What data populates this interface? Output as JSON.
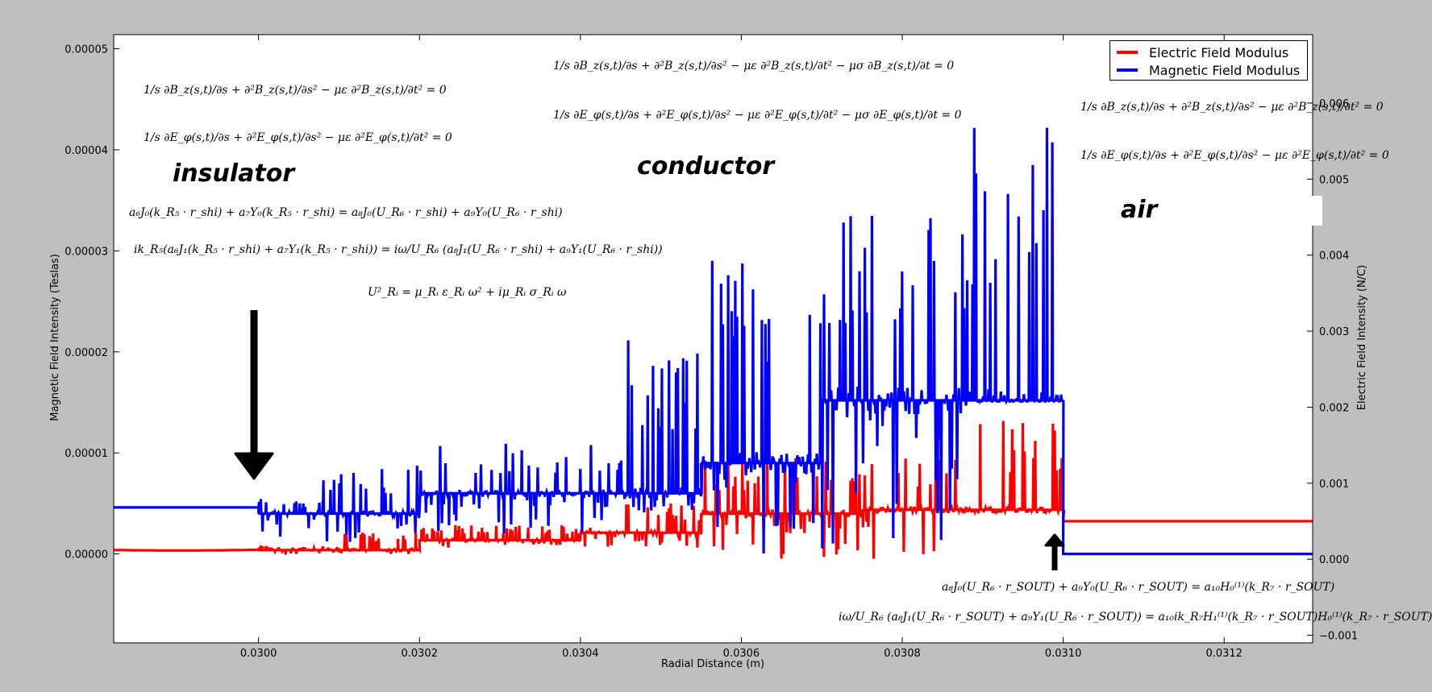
{
  "chart_data": {
    "type": "line",
    "title": "",
    "xlabel": "Radial Distance (m)",
    "ylabel_left": "Magnetic Field Intensity (Teslas)",
    "ylabel_right": "Electric Field Intensity (N/C)",
    "xlim": [
      0.02982,
      0.03131
    ],
    "ylim_left": [
      -8.8e-06,
      5.14e-05
    ],
    "ylim_right": [
      -0.0011,
      0.0069
    ],
    "grid": false,
    "legend_position": "top-right",
    "x_ticks": [
      "0.0300",
      "0.0302",
      "0.0304",
      "0.0306",
      "0.0308",
      "0.0310",
      "0.0312"
    ],
    "x_tick_values": [
      0.03,
      0.0302,
      0.0304,
      0.0306,
      0.0308,
      0.031,
      0.0312
    ],
    "left_ticks": [
      "0.00005",
      "0.00004",
      "0.00003",
      "0.00002",
      "0.00001",
      "0.00000"
    ],
    "left_tick_values": [
      5e-05,
      4e-05,
      3e-05,
      2e-05,
      1e-05,
      0.0
    ],
    "right_ticks": [
      "0.006",
      "0.005",
      "0.004",
      "0.003",
      "0.002",
      "0.001",
      "0.000",
      "−0.001"
    ],
    "right_tick_values": [
      0.006,
      0.005,
      0.004,
      0.003,
      0.002,
      0.001,
      0.0,
      -0.001
    ],
    "series": [
      {
        "name": "Electric Field Modulus",
        "axis": "right",
        "color": "#ff0000",
        "regions": [
          {
            "x0": 0.02982,
            "x1": 0.03,
            "lo": 0.000115,
            "hi": 0.000125,
            "shape": "sag"
          },
          {
            "x0": 0.03,
            "x1": 0.0301,
            "lo": 5e-05,
            "hi": 0.00018
          },
          {
            "x0": 0.0301,
            "x1": 0.0302,
            "lo": 5e-05,
            "hi": 0.00035
          },
          {
            "x0": 0.0302,
            "x1": 0.03045,
            "lo": 0.00015,
            "hi": 0.00045
          },
          {
            "x0": 0.03045,
            "x1": 0.03055,
            "lo": 0.00015,
            "hi": 0.00075
          },
          {
            "x0": 0.03055,
            "x1": 0.03085,
            "lo": 0.0,
            "hi": 0.00135
          },
          {
            "x0": 0.03085,
            "x1": 0.031,
            "lo": 0.0006,
            "hi": 0.00185
          },
          {
            "x0": 0.031,
            "x1": 0.03131,
            "lo": 0.00049,
            "hi": 0.00051,
            "shape": "flat"
          }
        ],
        "levels": [
          {
            "x0": 0.03,
            "x1": 0.0302,
            "y": 0.00012
          },
          {
            "x0": 0.0302,
            "x1": 0.0304,
            "y": 0.00025
          },
          {
            "x0": 0.0304,
            "x1": 0.03055,
            "y": 0.00035
          },
          {
            "x0": 0.03055,
            "x1": 0.03075,
            "y": 0.0006
          },
          {
            "x0": 0.03075,
            "x1": 0.031,
            "y": 0.00065
          }
        ]
      },
      {
        "name": "Magnetic Field Modulus",
        "axis": "left",
        "color": "#0000ff",
        "regions": [
          {
            "x0": 0.02982,
            "x1": 0.03,
            "lo": 4.6e-06,
            "hi": 4.6e-06,
            "shape": "flat"
          },
          {
            "x0": 0.03,
            "x1": 0.03008,
            "lo": 1.5e-06,
            "hi": 5.5e-06
          },
          {
            "x0": 0.03008,
            "x1": 0.03017,
            "lo": 0.0,
            "hi": 8.5e-06
          },
          {
            "x0": 0.03017,
            "x1": 0.03045,
            "lo": 2e-06,
            "hi": 1.1e-05
          },
          {
            "x0": 0.03045,
            "x1": 0.03055,
            "lo": 4e-06,
            "hi": 2.15e-05
          },
          {
            "x0": 0.03055,
            "x1": 0.0307,
            "lo": 0.0,
            "hi": 3.15e-05
          },
          {
            "x0": 0.0307,
            "x1": 0.03088,
            "lo": 0.0,
            "hi": 3.4e-05
          },
          {
            "x0": 0.03088,
            "x1": 0.031,
            "lo": 1.5e-05,
            "hi": 4.32e-05
          },
          {
            "x0": 0.031,
            "x1": 0.03131,
            "lo": 0.0,
            "hi": 0.0,
            "shape": "flat"
          }
        ],
        "levels": [
          {
            "x0": 0.03,
            "x1": 0.0302,
            "y": 4e-06
          },
          {
            "x0": 0.0302,
            "x1": 0.03055,
            "y": 6e-06
          },
          {
            "x0": 0.03055,
            "x1": 0.0307,
            "y": 9e-06
          },
          {
            "x0": 0.0307,
            "x1": 0.031,
            "y": 1.52e-05
          }
        ]
      }
    ],
    "annotations": {
      "regions": [
        "insulator",
        "conductor",
        "air"
      ],
      "equations": {
        "insulator_bz": "1/s ∂B_z(s,t)/∂s + ∂²B_z(s,t)/∂s² − με ∂²B_z(s,t)/∂t² = 0",
        "insulator_ephi": "1/s ∂E_φ(s,t)/∂s + ∂²E_φ(s,t)/∂s² − με ∂²E_φ(s,t)/∂t² = 0",
        "conductor_bz": "1/s ∂B_z(s,t)/∂s + ∂²B_z(s,t)/∂s² − με ∂²B_z(s,t)/∂t² − μσ ∂B_z(s,t)/∂t = 0",
        "conductor_ephi": "1/s ∂E_φ(s,t)/∂s + ∂²E_φ(s,t)/∂s² − με ∂²E_φ(s,t)/∂t² − μσ ∂E_φ(s,t)/∂t = 0",
        "air_bz": "1/s ∂B_z(s,t)/∂s + ∂²B_z(s,t)/∂s² − με ∂²B_z(s,t)/∂t² = 0",
        "air_ephi": "1/s ∂E_φ(s,t)/∂s + ∂²E_φ(s,t)/∂s² − με ∂²E_φ(s,t)/∂t² = 0",
        "bc_shi_1": "a₆J₀(k_R₅ · r_shi) + a₇Y₀(k_R₅ · r_shi) = a₈J₀(U_R₆ · r_shi) + a₉Y₀(U_R₆ · r_shi)",
        "bc_shi_2": "ik_R₅(a₆J₁(k_R₅ · r_shi) + a₇Y₁(k_R₅ · r_shi)) = iω/U_R₆ (a₈J₁(U_R₆ · r_shi) + a₉Y₁(U_R₆ · r_shi))",
        "dispersion": "U²_Rᵢ = μ_Rᵢ ε_Rᵢ ω² + iμ_Rᵢ σ_Rᵢ ω",
        "bc_sout_1": "a₈J₀(U_R₆ · r_SOUT) + a₉Y₀(U_R₆ · r_SOUT) = a₁₀H₀⁽¹⁾(k_R₇ · r_SOUT)",
        "bc_sout_2": "iω/U_R₆ (a₈J₁(U_R₆ · r_SOUT) + a₉Y₁(U_R₆ · r_SOUT)) = a₁₀ik_R₇H₁⁽¹⁾(k_R₇ · r_SOUT)H₀⁽¹⁾(k_R₇ · r_SOUT)"
      }
    }
  }
}
